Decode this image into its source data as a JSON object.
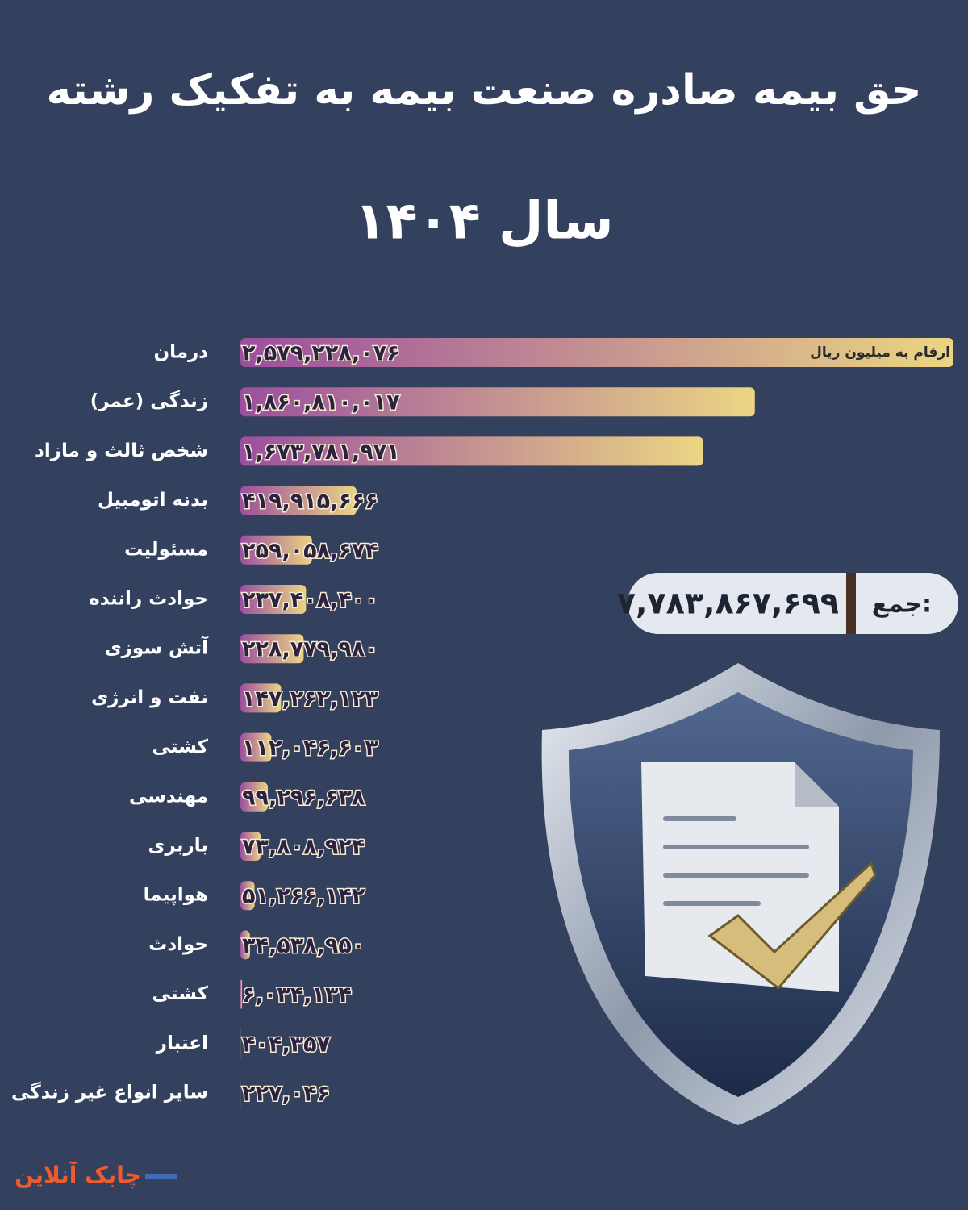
{
  "chart_data": {
    "type": "bar",
    "orientation": "horizontal",
    "title": "حق بیمه صادره صنعت بیمه به تفکیک رشته",
    "subtitle": "سال ۱۴۰۴",
    "note": "ارقام به میلیون ریال",
    "categories": [
      "درمان",
      "زندگی (عمر)",
      "شخص ثالث و مازاد",
      "بدنه اتومبیل",
      "مسئولیت",
      "حوادث راننده",
      "آتش سوزی",
      "نفت و انرژی",
      "کشتی",
      "مهندسی",
      "باربری",
      "هواپیما",
      "حوادث",
      "کشتی",
      "اعتبار",
      "سایر انواع غیر زندگی"
    ],
    "values": [
      2579228076,
      1860810017,
      1673781971,
      419915666,
      259058674,
      237408400,
      228779980,
      147262123,
      112046603,
      99296638,
      73808924,
      51266142,
      34538950,
      6034134,
      404357,
      227046
    ],
    "value_labels": [
      "۲,۵۷۹,۲۲۸,۰۷۶",
      "۱,۸۶۰,۸۱۰,۰۱۷",
      "۱,۶۷۳,۷۸۱,۹۷۱",
      "۴۱۹,۹۱۵,۶۶۶",
      "۲۵۹,۰۵۸,۶۷۴",
      "۲۳۷,۴۰۸,۴۰۰",
      "۲۲۸,۷۷۹,۹۸۰",
      "۱۴۷,۲۶۲,۱۲۳",
      "۱۱۲,۰۴۶,۶۰۳",
      "۹۹,۲۹۶,۶۳۸",
      "۷۳,۸۰۸,۹۲۴",
      "۵۱,۲۶۶,۱۴۲",
      "۳۴,۵۳۸,۹۵۰",
      "۶,۰۳۴,۱۳۴",
      "۴۰۴,۳۵۷",
      "۲۲۷,۰۴۶"
    ],
    "gradient": [
      "#9c4f9f",
      "#ecd583"
    ],
    "total": {
      "label": "جمع:",
      "value": 7783867699,
      "value_label": "۷,۷۸۳,۸۶۷,۶۹۹"
    },
    "brand": "چابک آنلاین"
  }
}
